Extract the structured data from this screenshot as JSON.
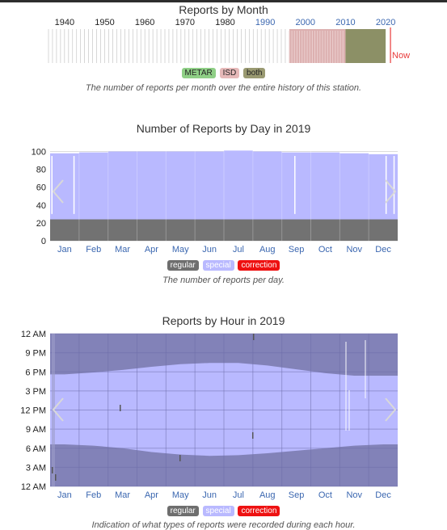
{
  "month_chart": {
    "title": "Reports by Month",
    "year_labels": [
      "1940",
      "1950",
      "1960",
      "1970",
      "1980",
      "1990",
      "2000",
      "2010",
      "2020"
    ],
    "now_label": "Now",
    "legend": [
      {
        "label": "METAR",
        "color": "#8fcf86"
      },
      {
        "label": "ISD",
        "color": "#e6b9b9"
      },
      {
        "label": "both",
        "color": "#9a9a72"
      }
    ],
    "caption": "The number of reports per month over the entire history of this station.",
    "colors": {
      "none": "#cfcfcf",
      "isd": "#dcb0b0",
      "both": "#8c9066",
      "now": "#e83a3a"
    }
  },
  "day_chart": {
    "title": "Number of Reports by Day in 2019",
    "caption": "The number of reports per day.",
    "legend": [
      {
        "label": "regular",
        "color": "#6e6e6e"
      },
      {
        "label": "special",
        "color": "#b9b9ff"
      },
      {
        "label": "correction",
        "color": "#ee1111"
      }
    ]
  },
  "hour_chart": {
    "title": "Reports by Hour in 2019",
    "caption": "Indication of what types of reports were recorded during each hour.",
    "legend": [
      {
        "label": "regular",
        "color": "#6e6e6e"
      },
      {
        "label": "special",
        "color": "#b9b9ff"
      },
      {
        "label": "correction",
        "color": "#ee1111"
      }
    ]
  },
  "chart_data": [
    {
      "type": "bar",
      "title": "Reports by Month",
      "x_range": [
        1936,
        2023
      ],
      "tick_labels": [
        "1940",
        "1950",
        "1960",
        "1970",
        "1980",
        "1990",
        "2000",
        "2010",
        "2020"
      ],
      "series": [
        {
          "name": "ISD",
          "years": [
            1996,
            2010
          ]
        },
        {
          "name": "both",
          "years": [
            2010,
            2020
          ]
        }
      ]
    },
    {
      "type": "area",
      "title": "Number of Reports by Day in 2019",
      "categories": [
        "Jan",
        "Feb",
        "Mar",
        "Apr",
        "May",
        "Jun",
        "Jul",
        "Aug",
        "Sep",
        "Oct",
        "Nov",
        "Dec"
      ],
      "yticks": [
        0,
        20,
        40,
        60,
        80,
        100
      ],
      "ylim": [
        0,
        105
      ],
      "series": [
        {
          "name": "regular",
          "values": [
            24,
            24,
            24,
            24,
            24,
            24,
            24,
            24,
            24,
            24,
            24,
            24
          ]
        },
        {
          "name": "special",
          "values": [
            98,
            99,
            100,
            100,
            100,
            100,
            101,
            100,
            99,
            99,
            98,
            97
          ]
        }
      ],
      "grid": true
    },
    {
      "type": "area",
      "title": "Reports by Hour in 2019",
      "categories": [
        "Jan",
        "Feb",
        "Mar",
        "Apr",
        "May",
        "Jun",
        "Jul",
        "Aug",
        "Sep",
        "Oct",
        "Nov",
        "Dec"
      ],
      "yticks": [
        "12 AM",
        "3 AM",
        "6 AM",
        "9 AM",
        "12 PM",
        "3 PM",
        "6 PM",
        "9 PM",
        "12 AM"
      ],
      "series": [
        {
          "name": "special",
          "hour_start": [
            6.6,
            6.4,
            6.0,
            5.4,
            5.0,
            4.8,
            4.9,
            5.2,
            5.6,
            6.0,
            6.4,
            6.6
          ],
          "hour_end": [
            17.6,
            17.9,
            18.3,
            18.8,
            19.2,
            19.4,
            19.4,
            19.0,
            18.4,
            17.8,
            17.4,
            17.4
          ]
        }
      ],
      "grid": true
    }
  ]
}
